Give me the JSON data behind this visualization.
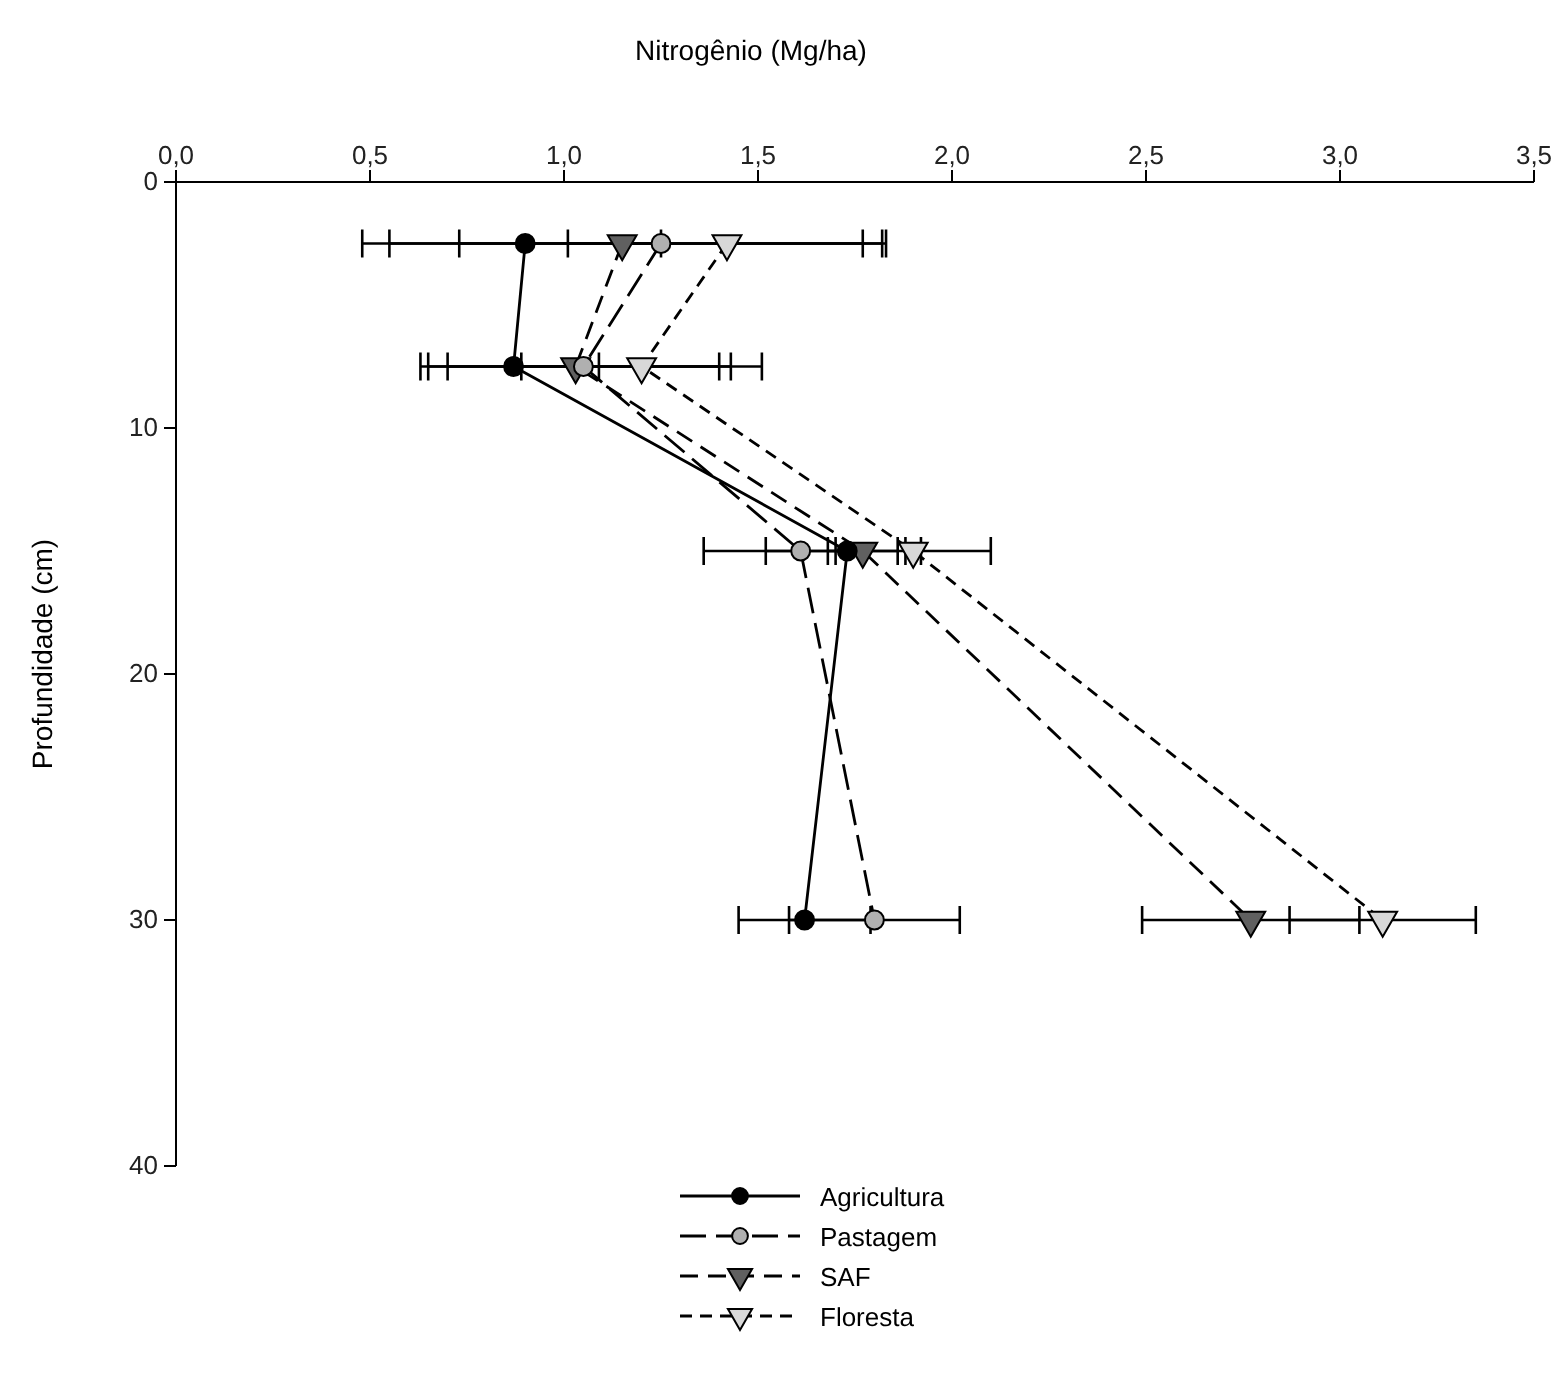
{
  "chart_data": {
    "type": "line",
    "xlabel": "Nitrogênio (Mg/ha)",
    "ylabel": "Profundidade (cm)",
    "xlim": [
      0,
      3.5
    ],
    "xticks": [
      {
        "value": 0,
        "label": "0,0"
      },
      {
        "value": 0.5,
        "label": "0,5"
      },
      {
        "value": 1,
        "label": "1,0"
      },
      {
        "value": 1.5,
        "label": "1,5"
      },
      {
        "value": 2,
        "label": "2,0"
      },
      {
        "value": 2.5,
        "label": "2,5"
      },
      {
        "value": 3,
        "label": "3,0"
      },
      {
        "value": 3.5,
        "label": "3,5"
      }
    ],
    "ylim": [
      40,
      0
    ],
    "yticks": [
      0,
      10,
      20,
      30,
      40
    ],
    "grid": false,
    "legend": "bottom",
    "series": [
      {
        "name": "Agricultura",
        "color": "#000000",
        "marker": "circle",
        "line_style": "solid",
        "x": [
          0.9,
          0.87,
          1.73,
          1.62
        ],
        "values": [
          2.5,
          7.5,
          15,
          30
        ],
        "xerrors": [
          0.35,
          0.22,
          0.37,
          0.17
        ]
      },
      {
        "name": "Pastagem",
        "color": "#b0b0b0",
        "marker": "circle",
        "line_style": "dashed",
        "x": [
          1.25,
          1.05,
          1.61,
          1.8
        ],
        "values": [
          2.5,
          7.5,
          15,
          30
        ],
        "xerrors": [
          0.52,
          0.35,
          0.09,
          0.22
        ]
      },
      {
        "name": "SAF",
        "color": "#606060",
        "marker": "triangle",
        "line_style": "dashed",
        "x": [
          1.15,
          1.03,
          1.77,
          2.77
        ],
        "values": [
          2.5,
          7.5,
          15,
          30
        ],
        "xerrors": [
          0.67,
          0.4,
          0.09,
          0.28
        ]
      },
      {
        "name": "Floresta",
        "color": "#d8d8d8",
        "marker": "triangle",
        "line_style": "dotted",
        "x": [
          1.42,
          1.2,
          1.9,
          3.11
        ],
        "values": [
          2.5,
          7.5,
          15,
          30
        ],
        "xerrors": [
          0.41,
          0.31,
          0.02,
          0.24
        ]
      }
    ]
  }
}
